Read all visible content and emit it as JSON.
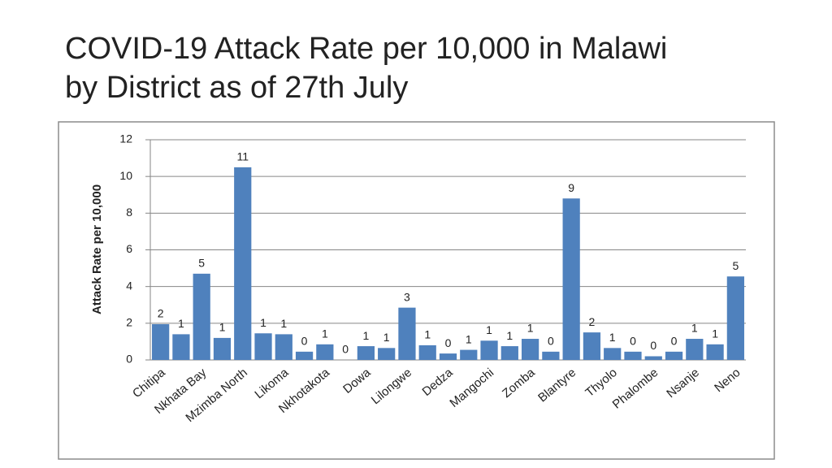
{
  "chart_data": {
    "type": "bar",
    "title": "COVID-19 Attack Rate per 10,000 in Malawi\nby District as of 27th July",
    "y_label": "Attack Rate per 10,000",
    "categories": [
      "Chitipa",
      null,
      "Nkhata Bay",
      null,
      "Mzimba North",
      null,
      "Likoma",
      null,
      "Nkhotakota",
      null,
      "Dowa",
      null,
      "Lilongwe",
      null,
      "Dedza",
      null,
      "Mangochi",
      null,
      "Zomba",
      null,
      "Blantyre",
      null,
      "Thyolo",
      null,
      "Phalombe",
      null,
      "Nsanje",
      null,
      "Neno"
    ],
    "values": [
      1.95,
      1.4,
      4.7,
      1.2,
      10.5,
      1.45,
      1.4,
      0.45,
      0.85,
      0,
      0.75,
      0.65,
      2.85,
      0.8,
      0.35,
      0.55,
      1.05,
      0.75,
      1.15,
      0.45,
      8.8,
      1.5,
      0.65,
      0.45,
      0.2,
      0.45,
      1.15,
      0.85,
      4.55
    ],
    "value_labels": [
      "2",
      "1",
      "5",
      "1",
      "11",
      "1",
      "1",
      "0",
      "1",
      "0",
      "1",
      "1",
      "3",
      "1",
      "0",
      "1",
      "1",
      "1",
      "1",
      "0",
      "9",
      "2",
      "1",
      "0",
      "0",
      "0",
      "1",
      "1",
      "5"
    ],
    "color": "#4f81bd",
    "ylim": [
      0,
      12
    ],
    "yticks": [
      0,
      2,
      4,
      6,
      8,
      10,
      12
    ],
    "grid": true
  }
}
